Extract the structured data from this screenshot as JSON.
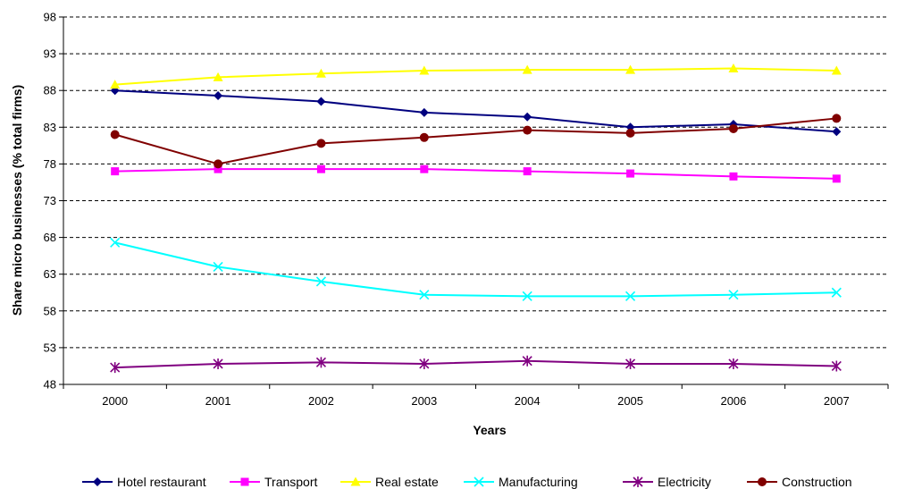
{
  "chart_data": {
    "type": "line",
    "title": "",
    "xlabel": "Years",
    "ylabel": "Share micro businesses (% total firms)",
    "categories": [
      "2000",
      "2001",
      "2002",
      "2003",
      "2004",
      "2005",
      "2006",
      "2007"
    ],
    "yticks": [
      "48",
      "53",
      "58",
      "63",
      "68",
      "73",
      "78",
      "83",
      "88",
      "93",
      "98"
    ],
    "ylim": [
      48,
      98
    ],
    "grid": "horizontal dashed",
    "legend_position": "bottom",
    "series": [
      {
        "name": "Hotel restaurant",
        "color": "#00007f",
        "marker": "diamond",
        "values": [
          88.0,
          87.3,
          86.5,
          85.0,
          84.4,
          83.0,
          83.4,
          82.4
        ]
      },
      {
        "name": "Transport",
        "color": "#ff00ff",
        "marker": "square",
        "values": [
          77.0,
          77.3,
          77.3,
          77.3,
          77.0,
          76.7,
          76.3,
          76.0
        ]
      },
      {
        "name": "Real estate",
        "color": "#ffff00",
        "marker": "triangle",
        "values": [
          88.8,
          89.8,
          90.3,
          90.7,
          90.8,
          90.8,
          91.0,
          90.7
        ]
      },
      {
        "name": "Manufacturing",
        "color": "#00ffff",
        "marker": "x",
        "values": [
          67.3,
          64.0,
          62.0,
          60.2,
          60.0,
          60.0,
          60.2,
          60.5
        ]
      },
      {
        "name": "Electricity",
        "color": "#800080",
        "marker": "star",
        "values": [
          50.3,
          50.8,
          51.0,
          50.8,
          51.2,
          50.8,
          50.8,
          50.5
        ]
      },
      {
        "name": "Construction",
        "color": "#800000",
        "marker": "circle",
        "values": [
          82.0,
          78.0,
          80.8,
          81.6,
          82.6,
          82.2,
          82.8,
          84.2
        ]
      }
    ]
  }
}
